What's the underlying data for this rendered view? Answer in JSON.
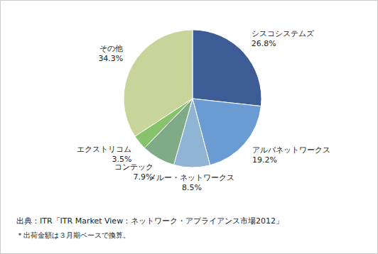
{
  "chart_data": {
    "type": "pie",
    "categories": [
      "シスコシステムズ",
      "アルバネットワークス",
      "メルー・ネットワークス",
      "コンテック",
      "エクストリコム",
      "その他"
    ],
    "values": [
      26.8,
      19.2,
      8.5,
      7.9,
      3.5,
      34.3
    ],
    "value_labels": [
      "26.8%",
      "19.2%",
      "8.5%",
      "7.9%",
      "3.5%",
      "34.3%"
    ],
    "colors": [
      "#3d5b94",
      "#6a9bd2",
      "#8fb4d4",
      "#7fab86",
      "#86c36a",
      "#c8d49a"
    ],
    "data_labels": true,
    "annotations": [
      "出典：ITR「ITR Market View：ネットワーク・アプライアンス市場2012」",
      "＊出荷金額は３月期ベースで換算。"
    ]
  }
}
